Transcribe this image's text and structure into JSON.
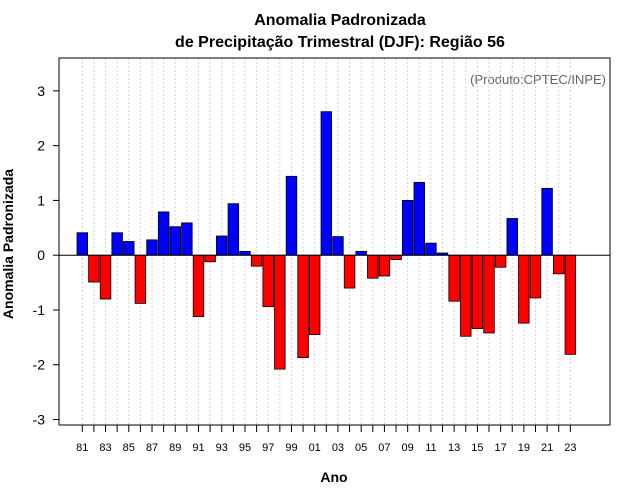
{
  "chart_data": {
    "type": "bar",
    "title_line1": "Anomalia Padronizada",
    "title_line2": "de Precipitação Trimestral (DJF): Região 56",
    "xlabel": "Ano",
    "ylabel": "Anomalia Padronizada",
    "credit": "(Produto:CPTEC/INPE)",
    "ylim": [
      -3.1,
      3.6
    ],
    "yticks": [
      "-3",
      "-2",
      "-1",
      "0",
      "1",
      "2",
      "3"
    ],
    "categories": [
      "81",
      "82",
      "83",
      "84",
      "85",
      "86",
      "87",
      "88",
      "89",
      "90",
      "91",
      "92",
      "93",
      "94",
      "95",
      "96",
      "97",
      "98",
      "99",
      "00",
      "01",
      "02",
      "03",
      "04",
      "05",
      "06",
      "07",
      "08",
      "09",
      "10",
      "11",
      "12",
      "13",
      "14",
      "15",
      "16",
      "17",
      "18",
      "19",
      "20",
      "21",
      "22",
      "23"
    ],
    "tick_labels": [
      "81",
      "83",
      "85",
      "87",
      "89",
      "91",
      "93",
      "95",
      "97",
      "99",
      "01",
      "03",
      "05",
      "07",
      "09",
      "11",
      "13",
      "15",
      "17",
      "19",
      "21",
      "23"
    ],
    "values": [
      0.41,
      -0.49,
      -0.8,
      0.41,
      0.25,
      -0.88,
      0.28,
      0.79,
      0.52,
      0.59,
      -1.12,
      -0.12,
      0.35,
      0.94,
      0.07,
      -0.2,
      -0.94,
      -2.08,
      1.44,
      -1.87,
      -1.45,
      2.62,
      0.34,
      -0.6,
      0.07,
      -0.42,
      -0.38,
      -0.08,
      1.0,
      1.33,
      0.22,
      0.04,
      -0.84,
      -1.48,
      -1.34,
      -1.42,
      -0.22,
      0.67,
      -1.24,
      -0.78,
      1.22,
      -0.34,
      -1.81
    ],
    "colors": {
      "positive": "#0000ff",
      "negative": "#ff0000",
      "zero_line": "#000000",
      "grid": "#d3d3d3"
    }
  }
}
